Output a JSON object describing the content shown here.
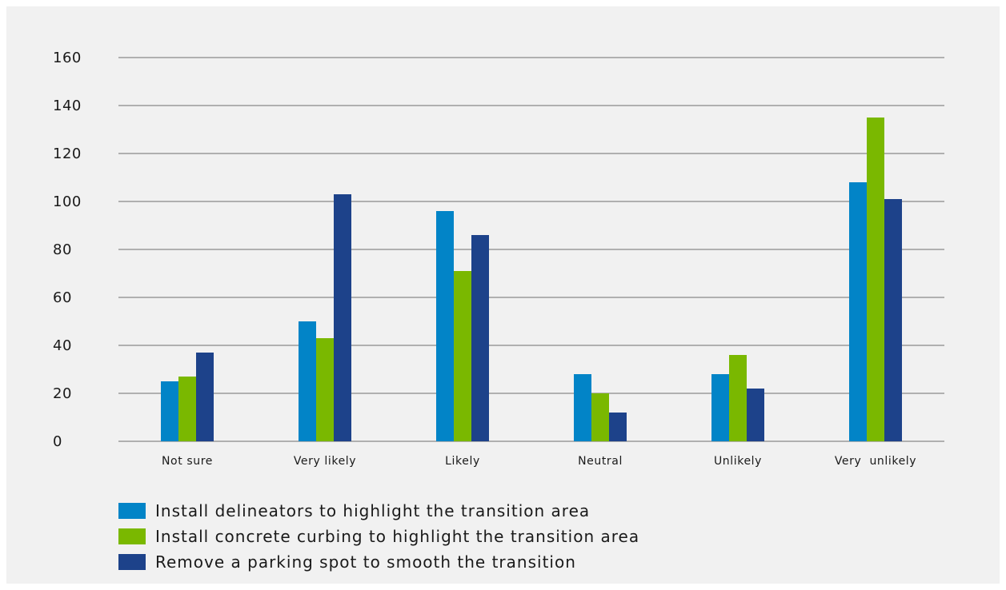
{
  "chart_data": {
    "type": "bar",
    "categories": [
      "Not sure",
      "Very likely",
      "Likely",
      "Neutral",
      "Unlikely",
      "Very  unlikely"
    ],
    "series": [
      {
        "name": "Install delineators to highlight the transition area",
        "color": "#0284c7",
        "values": [
          25,
          50,
          96,
          28,
          28,
          108
        ]
      },
      {
        "name": "Install concrete curbing to highlight the transition area",
        "color": "#7ab800",
        "values": [
          27,
          43,
          71,
          20,
          36,
          135
        ]
      },
      {
        "name": "Remove a parking spot to smooth the transition",
        "color": "#1d428a",
        "values": [
          37,
          103,
          86,
          12,
          22,
          101
        ]
      }
    ],
    "yticks": [
      0,
      20,
      40,
      60,
      80,
      100,
      120,
      140,
      160
    ],
    "ylim": [
      0,
      160
    ],
    "grid": true,
    "legend_position": "bottom-left"
  }
}
